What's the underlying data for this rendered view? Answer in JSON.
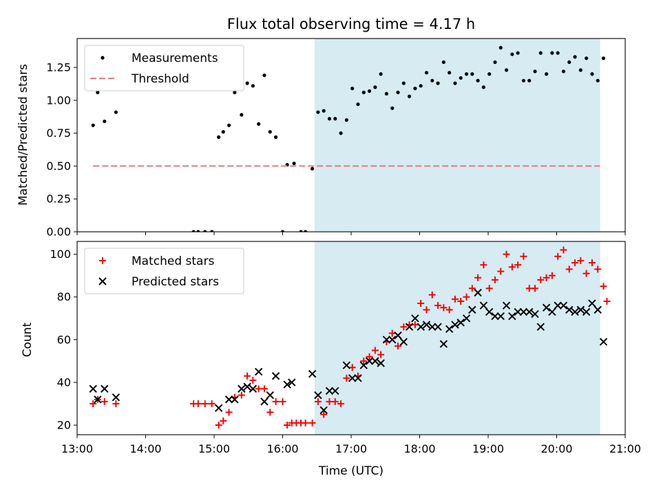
{
  "chart_data": [
    {
      "type": "scatter",
      "title": "Flux total observing time = 4.17 h",
      "xlabel": "",
      "ylabel": "Matched/Predicted stars",
      "xlim": [
        "13:00",
        "21:00"
      ],
      "ylim": [
        0,
        1.47
      ],
      "yticks": [
        "0.00",
        "0.25",
        "0.50",
        "0.75",
        "1.00",
        "1.25"
      ],
      "shaded_region": {
        "from": "16:28",
        "to": "20:38",
        "color": "#add8e6"
      },
      "legend_position": "top-left",
      "series": [
        {
          "name": "Measurements",
          "marker": "dot",
          "color": "#000000",
          "points": [
            [
              "13:14",
              0.81
            ],
            [
              "13:18",
              1.06
            ],
            [
              "13:24",
              0.84
            ],
            [
              "13:34",
              0.91
            ],
            [
              "14:42",
              0.0
            ],
            [
              "14:46",
              0.0
            ],
            [
              "14:52",
              0.0
            ],
            [
              "14:58",
              0.0
            ],
            [
              "15:04",
              0.72
            ],
            [
              "15:08",
              0.76
            ],
            [
              "15:13",
              0.81
            ],
            [
              "15:18",
              1.06
            ],
            [
              "15:24",
              0.89
            ],
            [
              "15:29",
              1.13
            ],
            [
              "15:34",
              1.11
            ],
            [
              "15:39",
              0.82
            ],
            [
              "15:44",
              1.19
            ],
            [
              "15:49",
              0.76
            ],
            [
              "15:54",
              0.72
            ],
            [
              "16:00",
              0.0
            ],
            [
              "16:04",
              0.51
            ],
            [
              "16:10",
              0.52
            ],
            [
              "16:16",
              0.0
            ],
            [
              "16:20",
              0.0
            ],
            [
              "16:26",
              0.48
            ],
            [
              "16:31",
              0.91
            ],
            [
              "16:36",
              0.92
            ],
            [
              "16:41",
              0.86
            ],
            [
              "16:46",
              0.86
            ],
            [
              "16:51",
              0.75
            ],
            [
              "16:56",
              0.85
            ],
            [
              "17:01",
              1.09
            ],
            [
              "17:06",
              0.97
            ],
            [
              "17:11",
              1.06
            ],
            [
              "17:16",
              1.07
            ],
            [
              "17:21",
              1.1
            ],
            [
              "17:26",
              1.2
            ],
            [
              "17:31",
              1.05
            ],
            [
              "17:36",
              0.94
            ],
            [
              "17:41",
              1.06
            ],
            [
              "17:46",
              1.13
            ],
            [
              "17:51",
              1.03
            ],
            [
              "17:56",
              1.09
            ],
            [
              "18:01",
              1.11
            ],
            [
              "18:06",
              1.21
            ],
            [
              "18:11",
              1.15
            ],
            [
              "18:16",
              1.13
            ],
            [
              "18:21",
              1.29
            ],
            [
              "18:26",
              1.21
            ],
            [
              "18:31",
              1.13
            ],
            [
              "18:36",
              1.17
            ],
            [
              "18:41",
              1.2
            ],
            [
              "18:46",
              1.2
            ],
            [
              "18:51",
              1.15
            ],
            [
              "18:56",
              1.1
            ],
            [
              "19:01",
              1.2
            ],
            [
              "19:06",
              1.29
            ],
            [
              "19:11",
              1.4
            ],
            [
              "19:16",
              1.23
            ],
            [
              "19:21",
              1.35
            ],
            [
              "19:26",
              1.36
            ],
            [
              "19:31",
              1.15
            ],
            [
              "19:36",
              1.15
            ],
            [
              "19:41",
              1.22
            ],
            [
              "19:46",
              1.36
            ],
            [
              "19:51",
              1.2
            ],
            [
              "19:56",
              1.36
            ],
            [
              "20:01",
              1.36
            ],
            [
              "20:06",
              1.22
            ],
            [
              "20:11",
              1.29
            ],
            [
              "20:16",
              1.33
            ],
            [
              "20:21",
              1.23
            ],
            [
              "20:26",
              1.32
            ],
            [
              "20:31",
              1.2
            ],
            [
              "20:36",
              1.15
            ],
            [
              "20:41",
              1.32
            ]
          ]
        },
        {
          "name": "Threshold",
          "type": "line",
          "style": "dashed",
          "color": "#f08080",
          "points": [
            [
              "13:14",
              0.5
            ],
            [
              "20:38",
              0.5
            ]
          ]
        }
      ]
    },
    {
      "type": "scatter",
      "title": "",
      "xlabel": "Time (UTC)",
      "ylabel": "Count",
      "xlim": [
        "13:00",
        "21:00"
      ],
      "xticks": [
        "13:00",
        "14:00",
        "15:00",
        "16:00",
        "17:00",
        "18:00",
        "19:00",
        "20:00",
        "21:00"
      ],
      "ylim": [
        15.5,
        106
      ],
      "yticks": [
        "20",
        "40",
        "60",
        "80",
        "100"
      ],
      "shaded_region": {
        "from": "16:28",
        "to": "20:38",
        "color": "#add8e6"
      },
      "legend_position": "top-left",
      "series": [
        {
          "name": "Matched stars",
          "marker": "plus",
          "color": "#ff0000",
          "points": [
            [
              "13:14",
              30
            ],
            [
              "13:18",
              32
            ],
            [
              "13:24",
              31
            ],
            [
              "13:34",
              30
            ],
            [
              "14:42",
              30
            ],
            [
              "14:46",
              30
            ],
            [
              "14:52",
              30
            ],
            [
              "14:58",
              30
            ],
            [
              "15:04",
              20
            ],
            [
              "15:08",
              22
            ],
            [
              "15:13",
              26
            ],
            [
              "15:18",
              33
            ],
            [
              "15:24",
              34
            ],
            [
              "15:29",
              43
            ],
            [
              "15:34",
              41
            ],
            [
              "15:39",
              37
            ],
            [
              "15:44",
              37
            ],
            [
              "15:49",
              26
            ],
            [
              "15:54",
              31
            ],
            [
              "16:00",
              31
            ],
            [
              "16:04",
              20
            ],
            [
              "16:08",
              21
            ],
            [
              "16:12",
              21
            ],
            [
              "16:16",
              21
            ],
            [
              "16:20",
              21
            ],
            [
              "16:26",
              21
            ],
            [
              "16:31",
              31
            ],
            [
              "16:36",
              25
            ],
            [
              "16:41",
              31
            ],
            [
              "16:46",
              31
            ],
            [
              "16:51",
              30
            ],
            [
              "16:56",
              42
            ],
            [
              "17:01",
              47
            ],
            [
              "17:06",
              43
            ],
            [
              "17:11",
              50
            ],
            [
              "17:16",
              52
            ],
            [
              "17:21",
              55
            ],
            [
              "17:26",
              53
            ],
            [
              "17:31",
              59
            ],
            [
              "17:36",
              63
            ],
            [
              "17:41",
              57
            ],
            [
              "17:46",
              66
            ],
            [
              "17:51",
              67
            ],
            [
              "17:56",
              67
            ],
            [
              "18:01",
              77
            ],
            [
              "18:06",
              74
            ],
            [
              "18:11",
              81
            ],
            [
              "18:16",
              76
            ],
            [
              "18:21",
              75
            ],
            [
              "18:26",
              74
            ],
            [
              "18:31",
              79
            ],
            [
              "18:36",
              78
            ],
            [
              "18:41",
              80
            ],
            [
              "18:46",
              84
            ],
            [
              "18:51",
              89
            ],
            [
              "18:56",
              95
            ],
            [
              "19:01",
              84
            ],
            [
              "19:06",
              88
            ],
            [
              "19:11",
              92
            ],
            [
              "19:16",
              100
            ],
            [
              "19:21",
              94
            ],
            [
              "19:26",
              95
            ],
            [
              "19:31",
              99
            ],
            [
              "19:36",
              84
            ],
            [
              "19:41",
              84
            ],
            [
              "19:46",
              88
            ],
            [
              "19:51",
              89
            ],
            [
              "19:56",
              90
            ],
            [
              "20:01",
              99
            ],
            [
              "20:06",
              102
            ],
            [
              "20:11",
              93
            ],
            [
              "20:16",
              96
            ],
            [
              "20:21",
              97
            ],
            [
              "20:26",
              91
            ],
            [
              "20:31",
              96
            ],
            [
              "20:36",
              93
            ],
            [
              "20:41",
              85
            ],
            [
              "20:44",
              78
            ]
          ]
        },
        {
          "name": "Predicted stars",
          "marker": "x",
          "color": "#000000",
          "points": [
            [
              "13:14",
              37
            ],
            [
              "13:18",
              32
            ],
            [
              "13:24",
              37
            ],
            [
              "13:34",
              33
            ],
            [
              "15:04",
              28
            ],
            [
              "15:13",
              32
            ],
            [
              "15:18",
              32
            ],
            [
              "15:24",
              37
            ],
            [
              "15:29",
              38
            ],
            [
              "15:34",
              37
            ],
            [
              "15:39",
              45
            ],
            [
              "15:44",
              31
            ],
            [
              "15:49",
              34
            ],
            [
              "15:54",
              43
            ],
            [
              "16:04",
              39
            ],
            [
              "16:08",
              40
            ],
            [
              "16:26",
              44
            ],
            [
              "16:31",
              34
            ],
            [
              "16:36",
              27
            ],
            [
              "16:41",
              36
            ],
            [
              "16:46",
              36
            ],
            [
              "16:56",
              48
            ],
            [
              "17:01",
              42
            ],
            [
              "17:06",
              42
            ],
            [
              "17:11",
              48
            ],
            [
              "17:16",
              50
            ],
            [
              "17:21",
              50
            ],
            [
              "17:26",
              49
            ],
            [
              "17:31",
              60
            ],
            [
              "17:36",
              60
            ],
            [
              "17:41",
              62
            ],
            [
              "17:46",
              59
            ],
            [
              "17:51",
              66
            ],
            [
              "17:56",
              70
            ],
            [
              "18:01",
              66
            ],
            [
              "18:06",
              67
            ],
            [
              "18:11",
              66
            ],
            [
              "18:16",
              66
            ],
            [
              "18:21",
              58
            ],
            [
              "18:26",
              65
            ],
            [
              "18:31",
              67
            ],
            [
              "18:36",
              68
            ],
            [
              "18:41",
              70
            ],
            [
              "18:46",
              74
            ],
            [
              "18:51",
              82
            ],
            [
              "18:56",
              76
            ],
            [
              "19:01",
              73
            ],
            [
              "19:06",
              71
            ],
            [
              "19:11",
              71
            ],
            [
              "19:16",
              76
            ],
            [
              "19:21",
              71
            ],
            [
              "19:26",
              73
            ],
            [
              "19:31",
              73
            ],
            [
              "19:36",
              73
            ],
            [
              "19:41",
              72
            ],
            [
              "19:46",
              66
            ],
            [
              "19:51",
              75
            ],
            [
              "19:56",
              73
            ],
            [
              "20:01",
              76
            ],
            [
              "20:06",
              76
            ],
            [
              "20:11",
              74
            ],
            [
              "20:16",
              73
            ],
            [
              "20:21",
              74
            ],
            [
              "20:26",
              73
            ],
            [
              "20:31",
              77
            ],
            [
              "20:36",
              74
            ],
            [
              "20:41",
              59
            ]
          ]
        }
      ]
    }
  ]
}
